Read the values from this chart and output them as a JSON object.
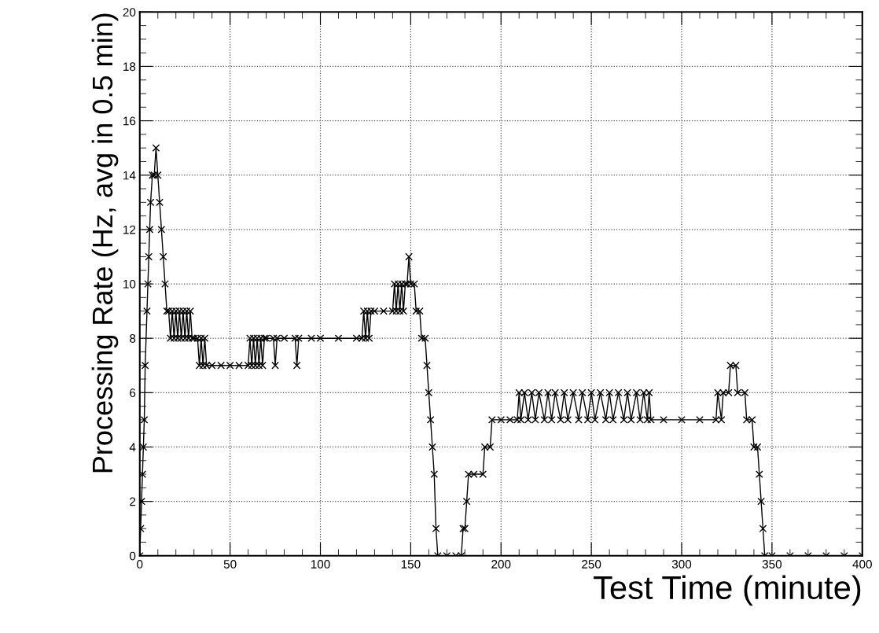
{
  "chart_data": {
    "type": "line",
    "xlabel": "Test Time (minute)",
    "ylabel": "Processing Rate (Hz, avg in 0.5 min)",
    "xlim": [
      0,
      400
    ],
    "xticks": [
      0,
      50,
      100,
      150,
      200,
      250,
      300,
      350,
      400
    ],
    "ylim": [
      0,
      20
    ],
    "yticks": [
      0,
      2,
      4,
      6,
      8,
      10,
      12,
      14,
      16,
      18,
      20
    ],
    "grid": true,
    "marker": "cross",
    "line_style": "solid",
    "series": [
      {
        "color": "#000000",
        "x": [
          0,
          0.5,
          1,
          1.5,
          2,
          2.5,
          3,
          4,
          4.5,
          5,
          5.5,
          6,
          7,
          8,
          9,
          10,
          11,
          12,
          13,
          14,
          15,
          16,
          17,
          18,
          19,
          20,
          21,
          22,
          23,
          24,
          25,
          26,
          27,
          28,
          29,
          30,
          32,
          33,
          34,
          35,
          36,
          37,
          40,
          45,
          50,
          55,
          60,
          61,
          62,
          63,
          64,
          65,
          66,
          67,
          68,
          69,
          70,
          74,
          75,
          76,
          80,
          86,
          87,
          88,
          95,
          100,
          110,
          120,
          123,
          124,
          125,
          126,
          127,
          128,
          130,
          135,
          140,
          141,
          142,
          143,
          144,
          145,
          146,
          147,
          148,
          149,
          150,
          152,
          153,
          155,
          156,
          158,
          159,
          160,
          161,
          162,
          163,
          164,
          165,
          170,
          175,
          178,
          179,
          180,
          181,
          182,
          185,
          190,
          191,
          194,
          195,
          200,
          205,
          209,
          210,
          211,
          213,
          215,
          217,
          219,
          221,
          224,
          226,
          228,
          230,
          233,
          235,
          237,
          240,
          243,
          245,
          248,
          250,
          252,
          255,
          258,
          260,
          262,
          265,
          268,
          270,
          272,
          275,
          277,
          279,
          281,
          282,
          283,
          290,
          300,
          310,
          319,
          320,
          322,
          323,
          326,
          327,
          330,
          331,
          335,
          336,
          339,
          340,
          342,
          343,
          344,
          345,
          346,
          350,
          360,
          370,
          380,
          390,
          400
        ],
        "values": [
          0,
          1,
          2,
          3,
          4,
          5,
          7,
          9,
          10,
          11,
          12,
          13,
          14,
          14,
          15,
          14,
          13,
          12,
          11,
          10,
          9,
          9,
          8,
          9,
          8,
          9,
          8,
          9,
          8,
          9,
          8,
          9,
          8,
          9,
          8,
          8,
          8,
          7,
          8,
          7,
          8,
          7,
          7,
          7,
          7,
          7,
          7,
          8,
          7,
          8,
          7,
          8,
          7,
          8,
          7,
          8,
          8,
          8,
          7,
          8,
          8,
          8,
          7,
          8,
          8,
          8,
          8,
          8,
          8,
          9,
          8,
          9,
          8,
          9,
          9,
          9,
          9,
          10,
          9,
          10,
          9,
          10,
          9,
          10,
          10,
          11,
          10,
          10,
          9,
          9,
          8,
          8,
          7,
          6,
          5,
          4,
          3,
          1,
          0,
          0,
          0,
          0,
          1,
          1,
          2,
          3,
          3,
          3,
          4,
          4,
          5,
          5,
          5,
          5,
          6,
          5,
          6,
          5,
          6,
          5,
          6,
          5,
          6,
          5,
          6,
          5,
          6,
          5,
          6,
          5,
          6,
          5,
          6,
          5,
          6,
          5,
          6,
          5,
          6,
          5,
          6,
          5,
          6,
          5,
          6,
          5,
          6,
          5,
          5,
          5,
          5,
          5,
          6,
          5,
          6,
          6,
          7,
          7,
          6,
          6,
          5,
          5,
          4,
          4,
          3,
          2,
          1,
          0,
          0,
          0,
          0,
          0,
          0,
          0
        ]
      }
    ]
  }
}
